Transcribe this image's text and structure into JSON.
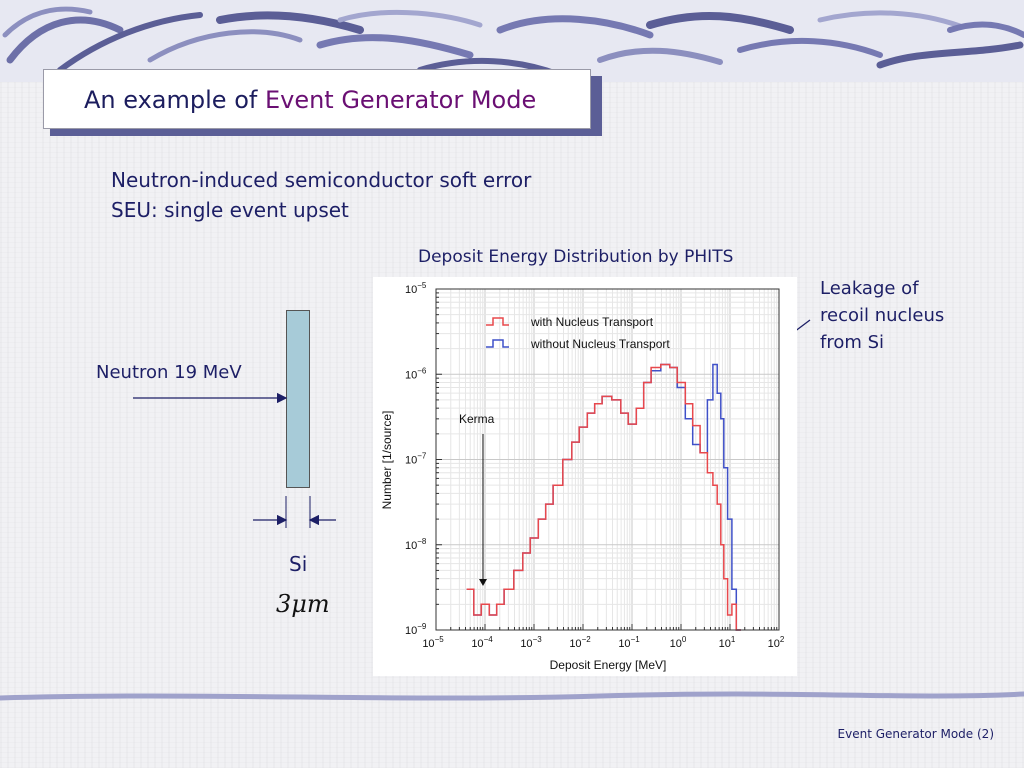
{
  "slide": {
    "title_prefix": "An example of ",
    "title_highlight": "Event Generator Mode",
    "line1": "Neutron-induced semiconductor soft error",
    "line2": "SEU: single event upset",
    "chart_heading": "Deposit Energy Distribution by PHITS",
    "leakage_annotation": [
      "Leakage of",
      "recoil nucleus",
      "from Si"
    ],
    "neutron_label": "Neutron 19 MeV",
    "si_label": "Si",
    "thickness_label": "3μm",
    "footer": "Event Generator Mode (2)"
  },
  "colors": {
    "title_text": "#1c1d5e",
    "title_highlight": "#6a0f73",
    "title_shadow": "#5b5e96",
    "body_text": "#1d1f66",
    "si_block": "#a7cbd8",
    "with_transport": "#e8484c",
    "without_transport": "#3f50c8",
    "overlap": "#6a2fb0"
  },
  "chart_data": {
    "type": "line",
    "xscale": "log",
    "yscale": "log",
    "xlabel": "Deposit Energy [MeV]",
    "ylabel": "Number [1/source]",
    "xlim": [
      1e-05,
      100
    ],
    "ylim": [
      1e-09,
      1e-05
    ],
    "x_ticks": [
      {
        "b": "10",
        "e": "−5"
      },
      {
        "b": "10",
        "e": "−4"
      },
      {
        "b": "10",
        "e": "−3"
      },
      {
        "b": "10",
        "e": "−2"
      },
      {
        "b": "10",
        "e": "−1"
      },
      {
        "b": "10",
        "e": "0"
      },
      {
        "b": "10",
        "e": "1"
      },
      {
        "b": "10",
        "e": "2"
      }
    ],
    "y_ticks": [
      {
        "b": "10",
        "e": "−9"
      },
      {
        "b": "10",
        "e": "−8"
      },
      {
        "b": "10",
        "e": "−7"
      },
      {
        "b": "10",
        "e": "−6"
      },
      {
        "b": "10",
        "e": "−5"
      }
    ],
    "annotation": "Kerma",
    "legend_position": "top-left",
    "series": [
      {
        "name": "with Nucleus Transport",
        "color": "#e8484c",
        "x": [
          5e-05,
          7e-05,
          0.0001,
          0.00015,
          0.0002,
          0.0003,
          0.0005,
          0.0007,
          0.001,
          0.0015,
          0.002,
          0.003,
          0.005,
          0.007,
          0.01,
          0.015,
          0.02,
          0.03,
          0.05,
          0.07,
          0.1,
          0.15,
          0.2,
          0.3,
          0.5,
          0.7,
          1.0,
          1.5,
          2.0,
          3.0,
          4.0,
          5.0,
          6.0,
          7.0,
          8.0,
          10.0,
          12.0,
          15.0
        ],
        "y": [
          3e-09,
          1.5e-09,
          2e-09,
          1.5e-09,
          2e-09,
          3e-09,
          5e-09,
          8e-09,
          1.2e-08,
          2e-08,
          3e-08,
          5e-08,
          1e-07,
          1.6e-07,
          2.4e-07,
          3.5e-07,
          4.5e-07,
          5.5e-07,
          5e-07,
          3.5e-07,
          2.6e-07,
          4e-07,
          8e-07,
          1.2e-06,
          1.3e-06,
          1.2e-06,
          8e-07,
          4.5e-07,
          2.5e-07,
          1.2e-07,
          7e-08,
          5e-08,
          3e-08,
          1e-08,
          4e-09,
          1.5e-09,
          2e-09,
          1e-09
        ]
      },
      {
        "name": "without Nucleus Transport",
        "color": "#3f50c8",
        "x": [
          5e-05,
          7e-05,
          0.0001,
          0.00015,
          0.0002,
          0.0003,
          0.0005,
          0.0007,
          0.001,
          0.0015,
          0.002,
          0.003,
          0.005,
          0.007,
          0.01,
          0.015,
          0.02,
          0.03,
          0.05,
          0.07,
          0.1,
          0.15,
          0.2,
          0.3,
          0.5,
          0.7,
          1.0,
          1.5,
          2.0,
          3.0,
          4.0,
          5.0,
          6.0,
          7.0,
          8.0,
          10.0,
          12.0,
          15.0
        ],
        "y": [
          3e-09,
          1.5e-09,
          2e-09,
          1.5e-09,
          2e-09,
          3e-09,
          5e-09,
          8e-09,
          1.2e-08,
          2e-08,
          3e-08,
          5e-08,
          1e-07,
          1.6e-07,
          2.4e-07,
          3.5e-07,
          4.5e-07,
          5.5e-07,
          5e-07,
          3.5e-07,
          2.6e-07,
          4e-07,
          8e-07,
          1.1e-06,
          1.3e-06,
          1.2e-06,
          7e-07,
          3e-07,
          1.5e-07,
          1.2e-07,
          5e-07,
          1.3e-06,
          6e-07,
          3e-07,
          8e-08,
          2e-08,
          3e-09,
          1e-09
        ]
      }
    ]
  }
}
